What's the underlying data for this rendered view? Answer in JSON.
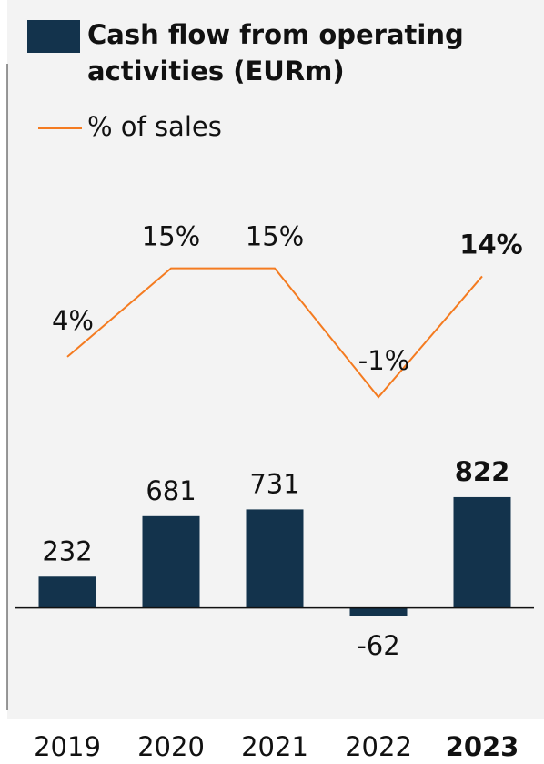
{
  "chart_data": {
    "type": "bar",
    "categories": [
      "2019",
      "2020",
      "2021",
      "2022",
      "2023"
    ],
    "highlight": "2023",
    "series": [
      {
        "name": "Cash flow from operating activities (EURm)",
        "type": "bar",
        "color": "#13334c",
        "values": [
          232,
          681,
          731,
          -62,
          822
        ]
      },
      {
        "name": "% of sales",
        "type": "line",
        "axis": "y2",
        "color": "#f47b20",
        "values": [
          4,
          15,
          15,
          -1,
          14
        ],
        "value_labels": [
          "4%",
          "15%",
          "15%",
          "-1%",
          "14%"
        ]
      }
    ],
    "ylim": [
      -800,
      1700
    ],
    "y2lim": [
      -15,
      37
    ]
  }
}
